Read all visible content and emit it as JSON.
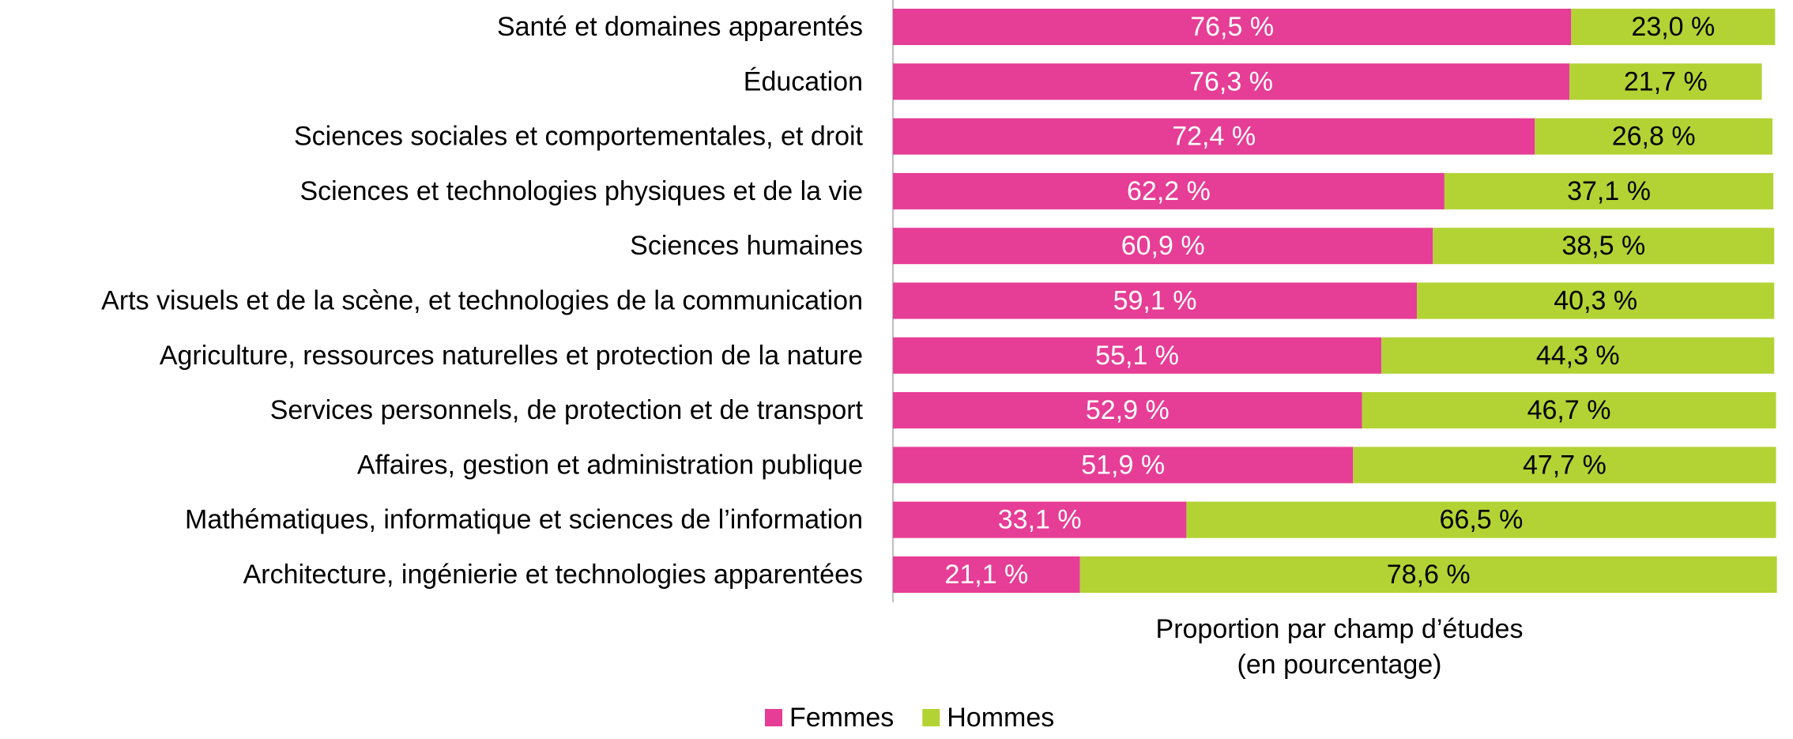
{
  "chart_data": {
    "type": "bar",
    "orientation": "horizontal",
    "stacked": true,
    "categories": [
      "Santé et domaines apparentés",
      "Éducation",
      "Sciences sociales et comportementales, et droit",
      "Sciences et technologies physiques et de la vie",
      "Sciences humaines",
      "Arts visuels et de la scène, et technologies de la communication",
      "Agriculture, ressources naturelles et protection de la nature",
      "Services personnels, de protection et de transport",
      "Affaires, gestion et administration publique",
      "Mathématiques, informatique et sciences de l’information",
      "Architecture, ingénierie et technologies apparentées"
    ],
    "series": [
      {
        "name": "Femmes",
        "color": "#e63d96",
        "values": [
          76.5,
          76.3,
          72.4,
          62.2,
          60.9,
          59.1,
          55.1,
          52.9,
          51.9,
          33.1,
          21.1
        ],
        "labels": [
          "76,5 %",
          "76,3 %",
          "72,4 %",
          "62,2 %",
          "60,9 %",
          "59,1 %",
          "55,1 %",
          "52,9 %",
          "51,9 %",
          "33,1 %",
          "21,1 %"
        ]
      },
      {
        "name": "Hommes",
        "color": "#b3d334",
        "values": [
          23.0,
          21.7,
          26.8,
          37.1,
          38.5,
          40.3,
          44.3,
          46.7,
          47.7,
          66.5,
          78.6
        ],
        "labels": [
          "23,0 %",
          "21,7 %",
          "26,8 %",
          "37,1 %",
          "38,5 %",
          "40,3 %",
          "44,3 %",
          "46,7 %",
          "47,7 %",
          "66,5 %",
          "78,6 %"
        ]
      }
    ],
    "xlabel": [
      "Proportion par champ d’études",
      "(en pourcentage)"
    ],
    "xlim": [
      0,
      100
    ],
    "grid": false,
    "legend": "bottom"
  }
}
